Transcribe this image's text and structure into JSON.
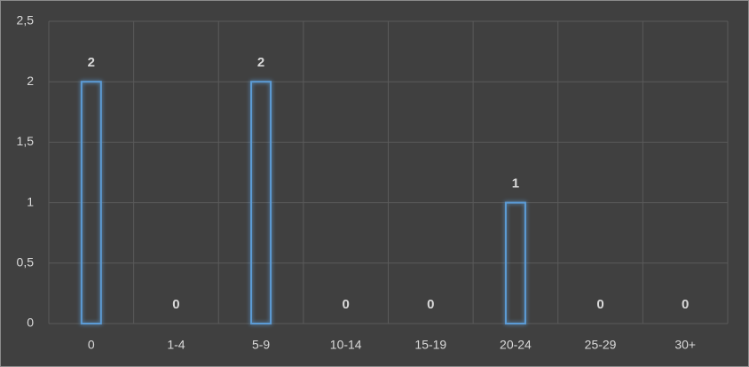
{
  "chart_data": {
    "type": "bar",
    "categories": [
      "0",
      "1-4",
      "5-9",
      "10-14",
      "15-19",
      "20-24",
      "25-29",
      "30+"
    ],
    "values": [
      2,
      0,
      2,
      0,
      0,
      1,
      0,
      0
    ],
    "color": "#5b9bd5",
    "ylim": [
      0,
      2.5
    ],
    "yticks": [
      0,
      {
        "value": 0.5,
        "label": "0,5"
      },
      1,
      {
        "value": 1.5,
        "label": "1,5"
      },
      2,
      {
        "value": 2.5,
        "label": "2,5"
      }
    ],
    "grid": true
  }
}
